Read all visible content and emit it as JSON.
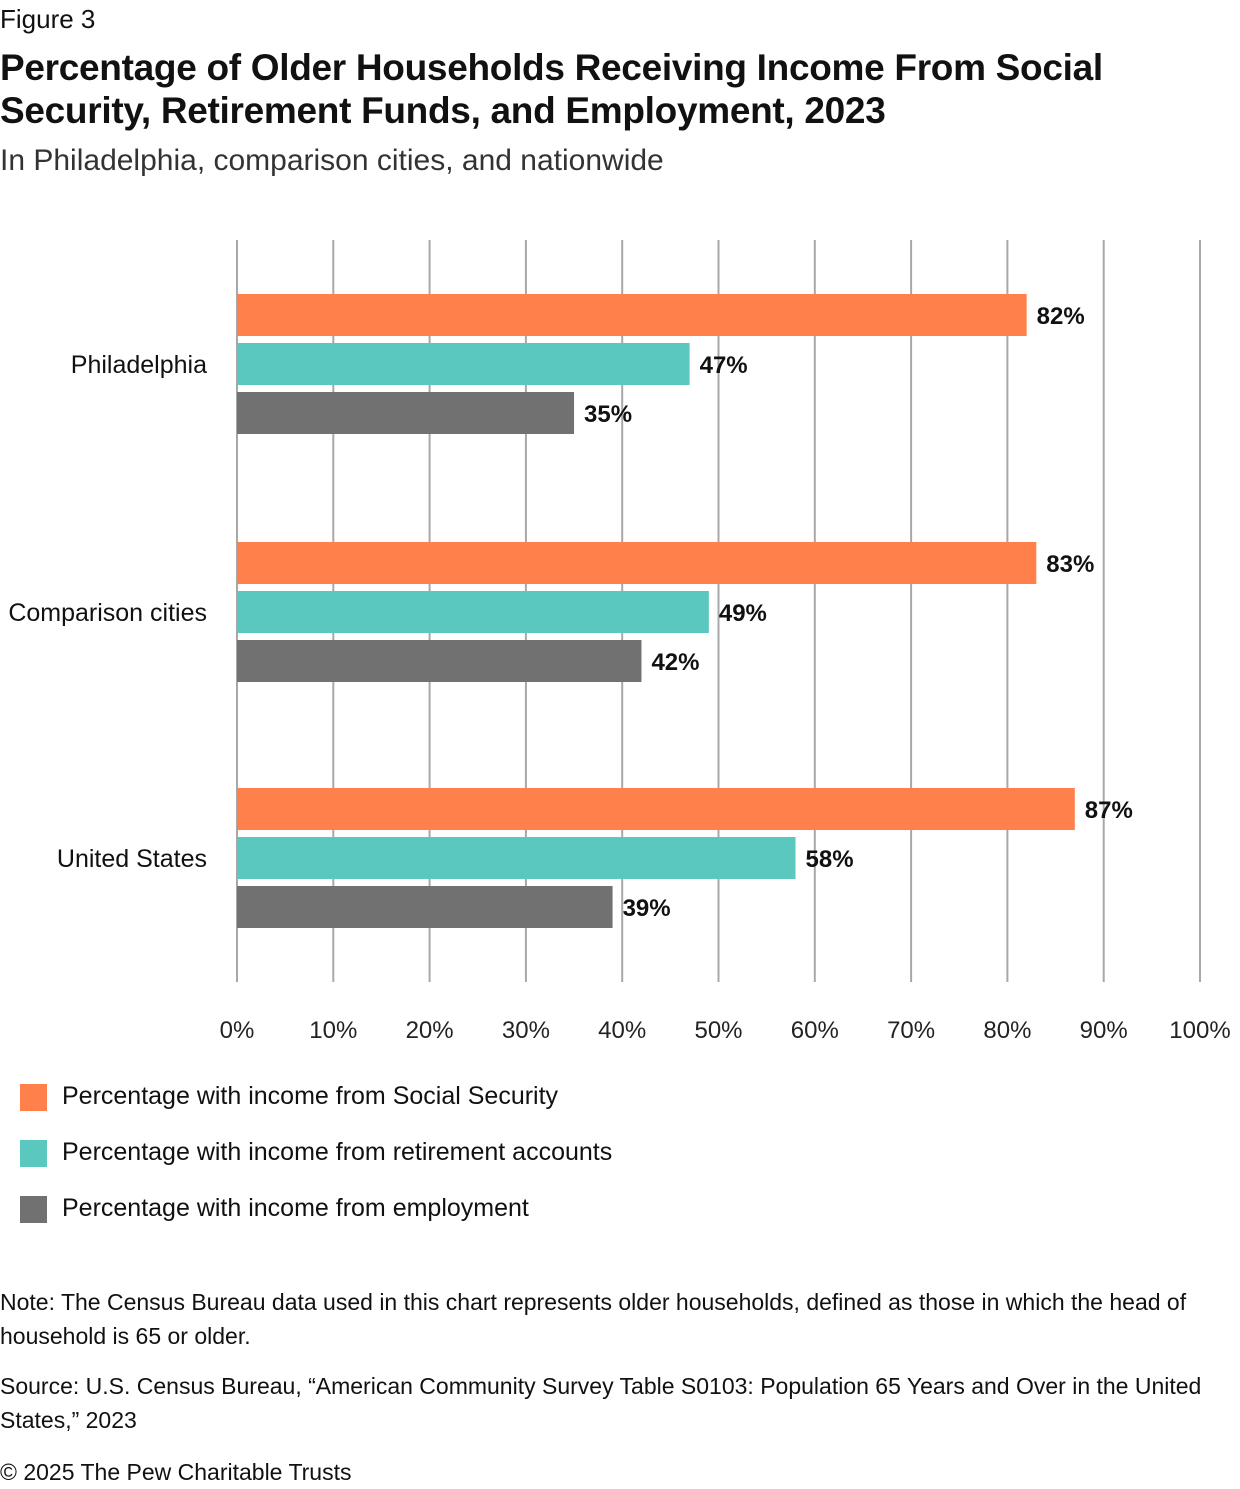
{
  "figure_label": "Figure 3",
  "title": "Percentage of Older Households Receiving Income From Social Security, Retirement Funds, and Employment, 2023",
  "subtitle": "In Philadelphia, comparison cities, and nationwide",
  "chart_data": {
    "type": "bar",
    "orientation": "horizontal",
    "categories": [
      "Philadelphia",
      "Comparison cities",
      "United States"
    ],
    "series": [
      {
        "name": "Percentage with income from Social Security",
        "color": "#FF804A",
        "values": [
          82,
          83,
          87
        ],
        "labels": [
          "82%",
          "83%",
          "87%"
        ]
      },
      {
        "name": "Percentage with income from retirement accounts",
        "color": "#5BC8BF",
        "values": [
          47,
          49,
          58
        ],
        "labels": [
          "47%",
          "49%",
          "58%"
        ]
      },
      {
        "name": "Percentage with income from employment",
        "color": "#717171",
        "values": [
          35,
          42,
          39
        ],
        "labels": [
          "35%",
          "42%",
          "39%"
        ]
      }
    ],
    "xlim": [
      0,
      100
    ],
    "ticks": [
      "0%",
      "10%",
      "20%",
      "30%",
      "40%",
      "50%",
      "60%",
      "70%",
      "80%",
      "90%",
      "100%"
    ],
    "grid": true,
    "legend_position": "bottom-left",
    "title": "Percentage of Older Households Receiving Income From Social Security, Retirement Funds, and Employment, 2023",
    "xlabel": "",
    "ylabel": ""
  },
  "legend": [
    {
      "label": "Percentage with income from Social Security",
      "color": "#FF804A"
    },
    {
      "label": "Percentage with income from retirement accounts",
      "color": "#5BC8BF"
    },
    {
      "label": "Percentage with income from employment",
      "color": "#717171"
    }
  ],
  "note": "Note: The Census Bureau data used in this chart represents older households, defined as those in which the head of household is 65 or older.",
  "source": "Source: U.S. Census Bureau, “American Community Survey Table S0103: Population 65 Years and Over in the United States,” 2023",
  "copyright": "© 2025 The Pew Charitable Trusts"
}
